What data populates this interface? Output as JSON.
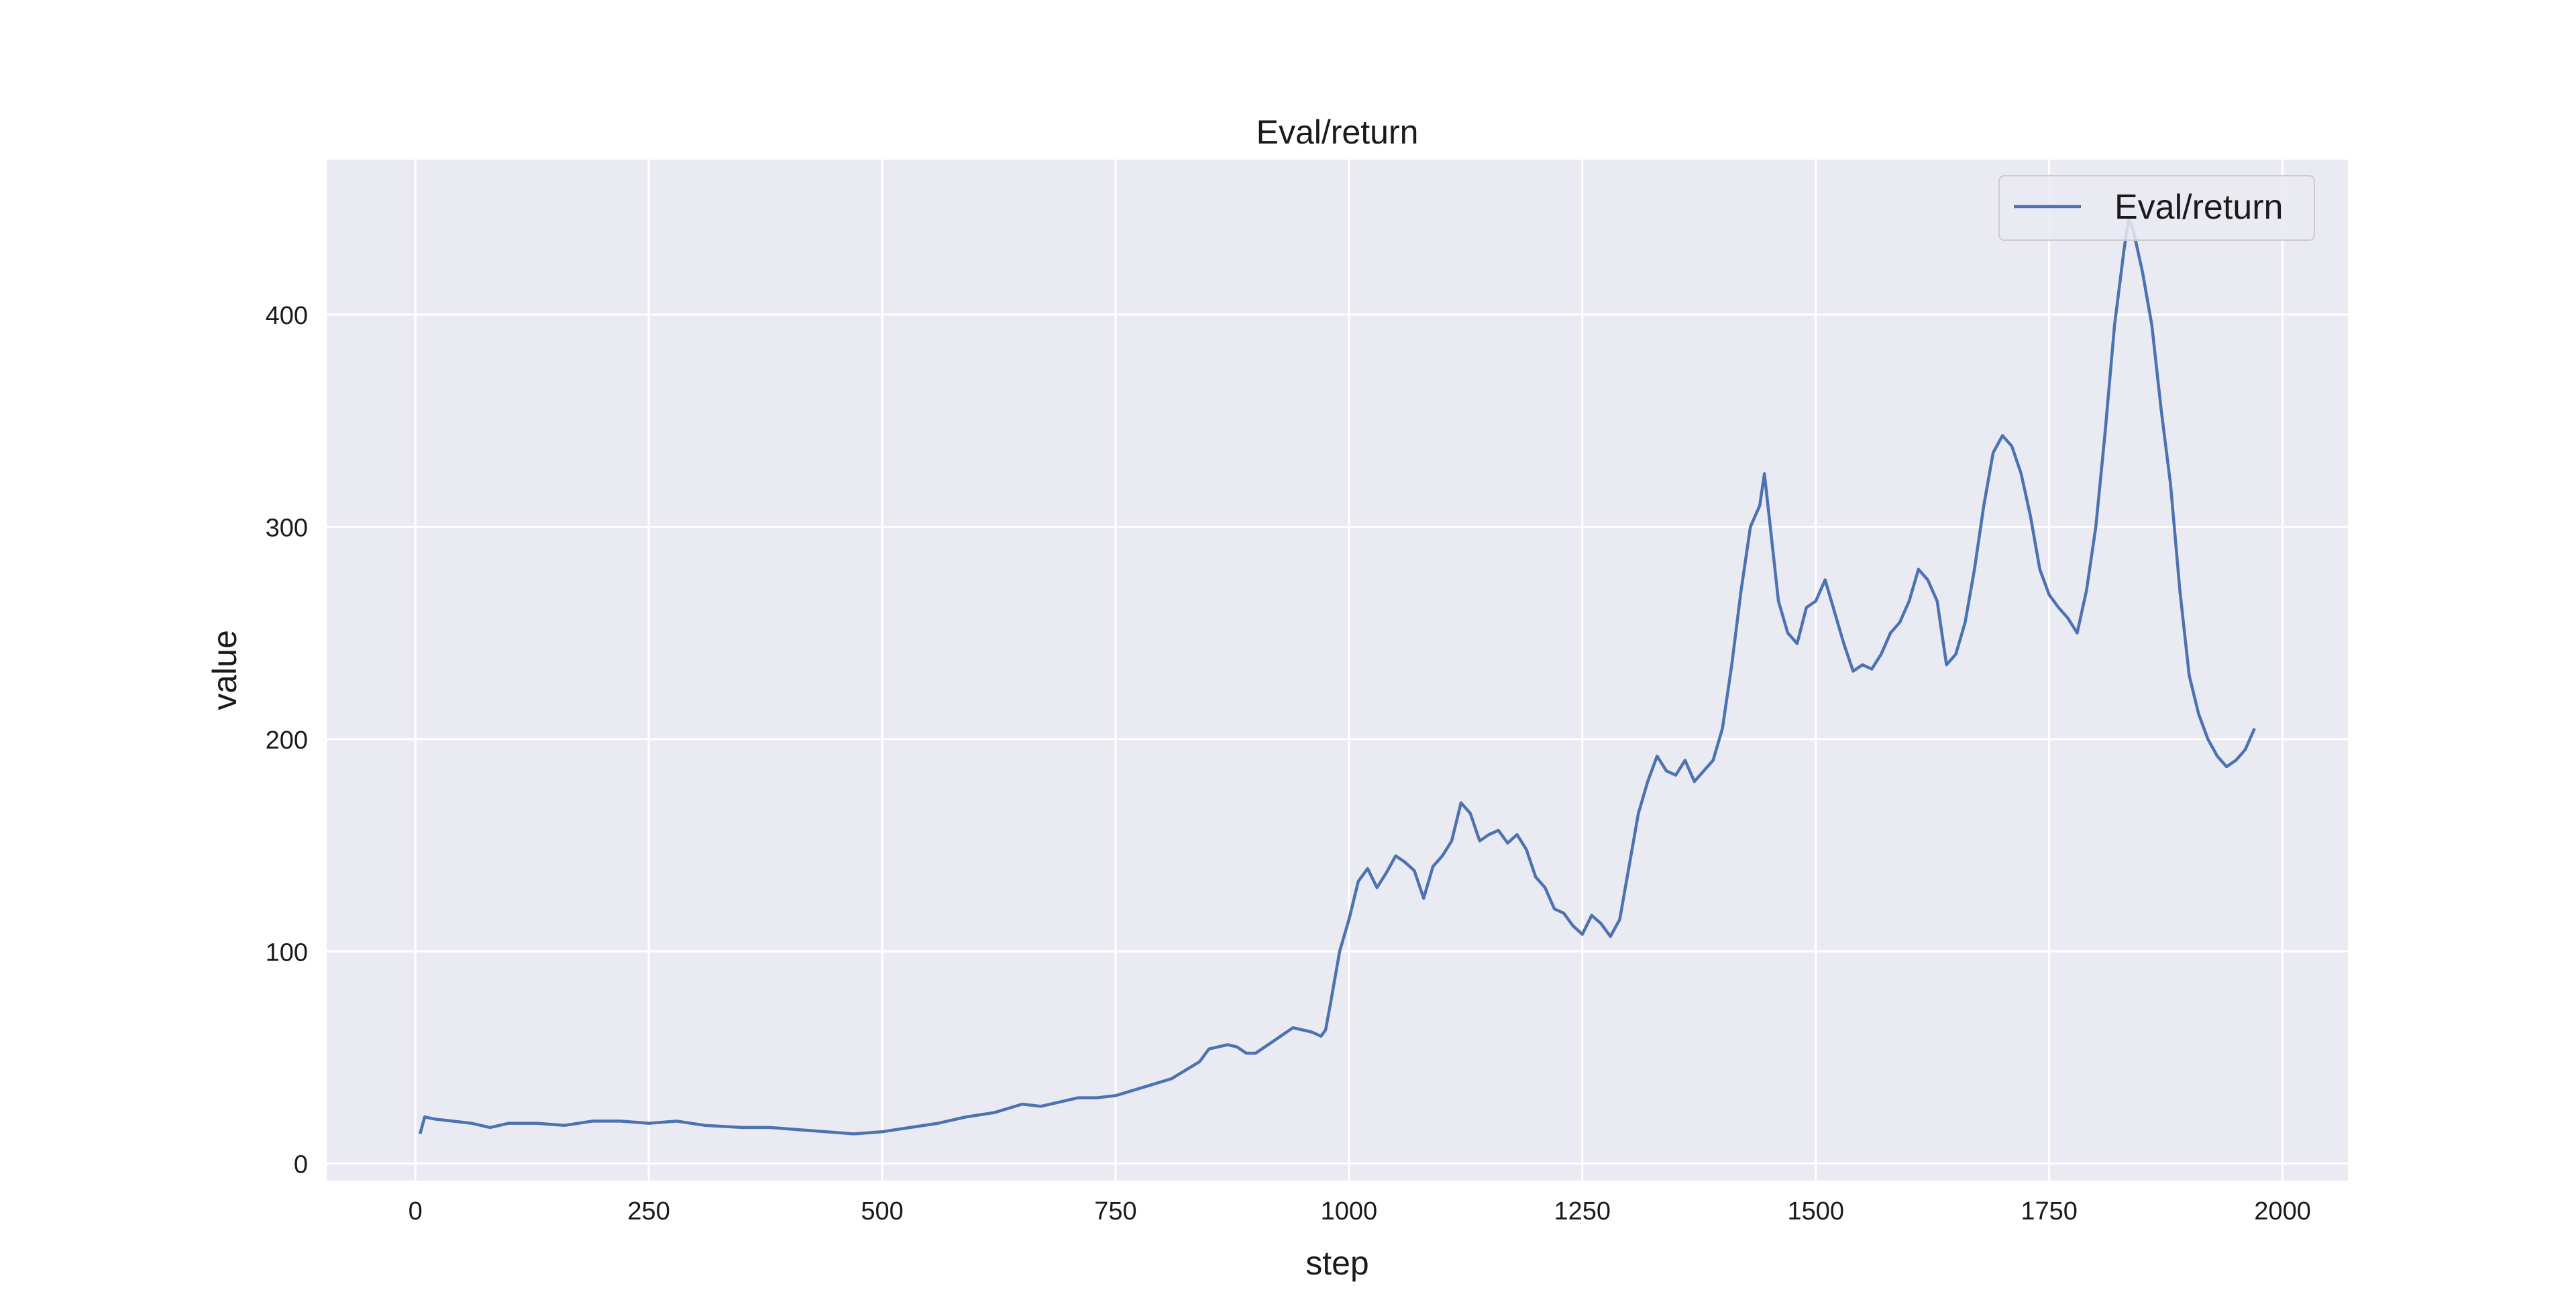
{
  "chart_data": {
    "type": "line",
    "title": "Eval/return",
    "xlabel": "step",
    "ylabel": "value",
    "xlim": [
      -95,
      2070
    ],
    "ylim": [
      -8,
      473
    ],
    "xticks": [
      0,
      250,
      500,
      750,
      1000,
      1250,
      1500,
      1750,
      2000
    ],
    "yticks": [
      0,
      100,
      200,
      300,
      400
    ],
    "grid": true,
    "legend_position": "top-right",
    "background_color": "#eaeaf2",
    "grid_color": "#ffffff",
    "series": [
      {
        "name": "Eval/return",
        "color": "#4c72b0",
        "x": [
          5,
          10,
          20,
          40,
          60,
          80,
          100,
          130,
          160,
          190,
          220,
          250,
          280,
          310,
          350,
          380,
          410,
          440,
          470,
          500,
          530,
          560,
          590,
          620,
          650,
          670,
          690,
          710,
          730,
          750,
          780,
          810,
          840,
          850,
          870,
          880,
          890,
          900,
          920,
          940,
          960,
          970,
          975,
          980,
          990,
          1000,
          1010,
          1020,
          1030,
          1040,
          1050,
          1060,
          1070,
          1080,
          1090,
          1100,
          1110,
          1120,
          1130,
          1140,
          1150,
          1160,
          1170,
          1180,
          1190,
          1200,
          1210,
          1220,
          1230,
          1240,
          1250,
          1260,
          1270,
          1280,
          1290,
          1300,
          1310,
          1320,
          1330,
          1340,
          1350,
          1360,
          1370,
          1380,
          1390,
          1400,
          1410,
          1420,
          1430,
          1440,
          1445,
          1450,
          1460,
          1470,
          1480,
          1490,
          1500,
          1510,
          1520,
          1530,
          1540,
          1550,
          1560,
          1570,
          1580,
          1590,
          1600,
          1610,
          1620,
          1630,
          1640,
          1650,
          1660,
          1670,
          1680,
          1690,
          1700,
          1710,
          1720,
          1730,
          1740,
          1750,
          1760,
          1770,
          1780,
          1790,
          1800,
          1810,
          1820,
          1830,
          1835,
          1840,
          1850,
          1860,
          1870,
          1880,
          1890,
          1900,
          1910,
          1920,
          1930,
          1940,
          1950,
          1960,
          1970
        ],
        "values": [
          14,
          22,
          21,
          20,
          19,
          17,
          19,
          19,
          18,
          20,
          20,
          19,
          20,
          18,
          17,
          17,
          16,
          15,
          14,
          15,
          17,
          19,
          22,
          24,
          28,
          27,
          29,
          31,
          31,
          32,
          36,
          40,
          48,
          54,
          56,
          55,
          52,
          52,
          58,
          64,
          62,
          60,
          63,
          75,
          100,
          115,
          133,
          139,
          130,
          137,
          145,
          142,
          138,
          125,
          140,
          145,
          152,
          170,
          165,
          152,
          155,
          157,
          151,
          155,
          148,
          135,
          130,
          120,
          118,
          112,
          108,
          117,
          113,
          107,
          115,
          140,
          165,
          180,
          192,
          185,
          183,
          190,
          180,
          185,
          190,
          205,
          235,
          270,
          300,
          310,
          325,
          305,
          265,
          250,
          245,
          262,
          265,
          275,
          260,
          245,
          232,
          235,
          233,
          240,
          250,
          255,
          265,
          280,
          275,
          265,
          235,
          240,
          255,
          280,
          310,
          335,
          343,
          338,
          325,
          305,
          280,
          268,
          262,
          257,
          250,
          270,
          300,
          345,
          395,
          430,
          445,
          440,
          420,
          395,
          355,
          320,
          270,
          230,
          212,
          200,
          192,
          187,
          190,
          195,
          205
        ]
      }
    ]
  }
}
